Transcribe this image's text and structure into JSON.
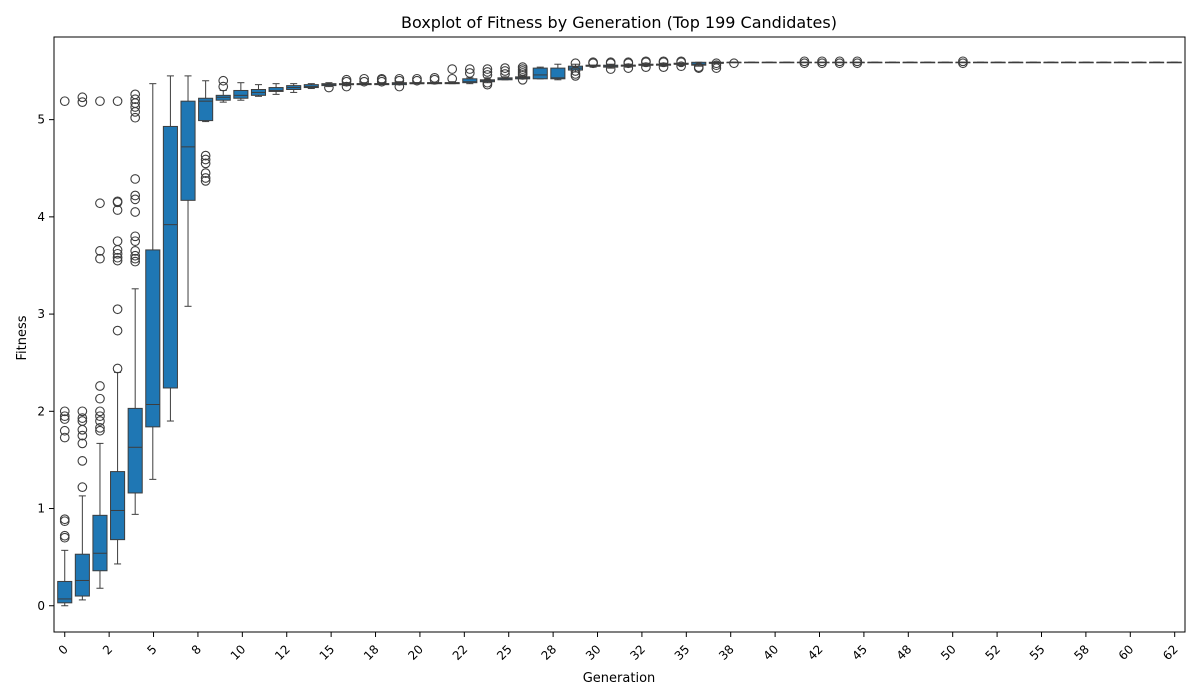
{
  "chart_data": {
    "type": "box",
    "title": "Boxplot of Fitness by Generation (Top 199 Candidates)",
    "xlabel": "Generation",
    "ylabel": "Fitness",
    "ylim": [
      -0.27,
      5.85
    ],
    "yticks": [
      0,
      1,
      2,
      3,
      4,
      5
    ],
    "grid": false,
    "box_color": "#1f77b4",
    "edge_color": "#3d3d3d",
    "x_tick_labels": [
      "0",
      "2",
      "5",
      "8",
      "10",
      "12",
      "15",
      "18",
      "20",
      "22",
      "25",
      "28",
      "30",
      "32",
      "35",
      "38",
      "40",
      "42",
      "45",
      "48",
      "50",
      "52",
      "55",
      "58",
      "60",
      "62"
    ],
    "boxes": [
      {
        "q1": 0.03,
        "median": 0.07,
        "q3": 0.25,
        "whisker_low": 0.0,
        "whisker_high": 0.57,
        "outliers": [
          0.7,
          0.72,
          0.87,
          0.89,
          1.73,
          1.8,
          1.92,
          1.95,
          2.0,
          5.19
        ]
      },
      {
        "q1": 0.1,
        "median": 0.26,
        "q3": 0.53,
        "whisker_low": 0.06,
        "whisker_high": 1.13,
        "outliers": [
          1.22,
          1.49,
          1.67,
          1.75,
          1.81,
          1.9,
          1.93,
          2.0,
          5.18,
          5.23
        ]
      },
      {
        "q1": 0.36,
        "median": 0.54,
        "q3": 0.93,
        "whisker_low": 0.18,
        "whisker_high": 1.67,
        "outliers": [
          1.8,
          1.83,
          1.9,
          1.95,
          2.0,
          2.13,
          2.26,
          3.57,
          3.65,
          4.14,
          5.19
        ]
      },
      {
        "q1": 0.68,
        "median": 0.98,
        "q3": 1.38,
        "whisker_low": 0.43,
        "whisker_high": 2.4,
        "outliers": [
          2.44,
          2.83,
          3.05,
          3.55,
          3.58,
          3.62,
          3.66,
          3.75,
          4.07,
          4.15,
          4.16,
          5.19
        ]
      },
      {
        "q1": 1.16,
        "median": 1.63,
        "q3": 2.03,
        "whisker_low": 0.94,
        "whisker_high": 3.26,
        "outliers": [
          3.54,
          3.57,
          3.6,
          3.65,
          3.75,
          3.8,
          4.05,
          4.18,
          4.22,
          4.39,
          5.02,
          5.08,
          5.13,
          5.17,
          5.21,
          5.26
        ]
      },
      {
        "q1": 1.84,
        "median": 2.07,
        "q3": 3.66,
        "whisker_low": 1.3,
        "whisker_high": 5.37,
        "outliers": []
      },
      {
        "q1": 2.24,
        "median": 3.92,
        "q3": 4.93,
        "whisker_low": 1.9,
        "whisker_high": 5.45,
        "outliers": []
      },
      {
        "q1": 4.17,
        "median": 4.72,
        "q3": 5.19,
        "whisker_low": 3.08,
        "whisker_high": 5.45,
        "outliers": []
      },
      {
        "q1": 4.99,
        "median": 5.19,
        "q3": 5.22,
        "whisker_low": 4.98,
        "whisker_high": 5.4,
        "outliers": [
          4.37,
          4.4,
          4.45,
          4.55,
          4.59,
          4.63
        ]
      },
      {
        "q1": 5.2,
        "median": 5.23,
        "q3": 5.25,
        "whisker_low": 5.18,
        "whisker_high": 5.3,
        "outliers": [
          5.34,
          5.4
        ]
      },
      {
        "q1": 5.22,
        "median": 5.25,
        "q3": 5.3,
        "whisker_low": 5.2,
        "whisker_high": 5.38,
        "outliers": []
      },
      {
        "q1": 5.25,
        "median": 5.28,
        "q3": 5.31,
        "whisker_low": 5.24,
        "whisker_high": 5.36,
        "outliers": []
      },
      {
        "q1": 5.29,
        "median": 5.3,
        "q3": 5.33,
        "whisker_low": 5.26,
        "whisker_high": 5.37,
        "outliers": []
      },
      {
        "q1": 5.31,
        "median": 5.33,
        "q3": 5.35,
        "whisker_low": 5.28,
        "whisker_high": 5.37,
        "outliers": []
      },
      {
        "q1": 5.33,
        "median": 5.34,
        "q3": 5.36,
        "whisker_low": 5.32,
        "whisker_high": 5.37,
        "outliers": []
      },
      {
        "q1": 5.35,
        "median": 5.36,
        "q3": 5.37,
        "whisker_low": 5.34,
        "whisker_high": 5.38,
        "outliers": [
          5.33
        ]
      },
      {
        "q1": 5.36,
        "median": 5.36,
        "q3": 5.37,
        "whisker_low": 5.35,
        "whisker_high": 5.38,
        "outliers": [
          5.34,
          5.39,
          5.41
        ]
      },
      {
        "q1": 5.36,
        "median": 5.37,
        "q3": 5.37,
        "whisker_low": 5.36,
        "whisker_high": 5.38,
        "outliers": [
          5.39,
          5.42
        ]
      },
      {
        "q1": 5.36,
        "median": 5.37,
        "q3": 5.37,
        "whisker_low": 5.36,
        "whisker_high": 5.38,
        "outliers": [
          5.39,
          5.41,
          5.42
        ]
      },
      {
        "q1": 5.36,
        "median": 5.37,
        "q3": 5.38,
        "whisker_low": 5.36,
        "whisker_high": 5.39,
        "outliers": [
          5.34,
          5.4,
          5.42
        ]
      },
      {
        "q1": 5.37,
        "median": 5.37,
        "q3": 5.38,
        "whisker_low": 5.37,
        "whisker_high": 5.38,
        "outliers": [
          5.4,
          5.42
        ]
      },
      {
        "q1": 5.37,
        "median": 5.38,
        "q3": 5.38,
        "whisker_low": 5.37,
        "whisker_high": 5.38,
        "outliers": [
          5.41,
          5.43
        ]
      },
      {
        "q1": 5.37,
        "median": 5.38,
        "q3": 5.38,
        "whisker_low": 5.37,
        "whisker_high": 5.39,
        "outliers": [
          5.42,
          5.52
        ]
      },
      {
        "q1": 5.38,
        "median": 5.39,
        "q3": 5.42,
        "whisker_low": 5.37,
        "whisker_high": 5.43,
        "outliers": [
          5.48,
          5.52
        ]
      },
      {
        "q1": 5.39,
        "median": 5.4,
        "q3": 5.41,
        "whisker_low": 5.38,
        "whisker_high": 5.43,
        "outliers": [
          5.36,
          5.38,
          5.46,
          5.49,
          5.52
        ]
      },
      {
        "q1": 5.41,
        "median": 5.42,
        "q3": 5.43,
        "whisker_low": 5.41,
        "whisker_high": 5.44,
        "outliers": [
          5.47,
          5.5,
          5.53
        ]
      },
      {
        "q1": 5.42,
        "median": 5.43,
        "q3": 5.44,
        "whisker_low": 5.42,
        "whisker_high": 5.45,
        "outliers": [
          5.41,
          5.46,
          5.48,
          5.5,
          5.52,
          5.54
        ]
      },
      {
        "q1": 5.42,
        "median": 5.46,
        "q3": 5.53,
        "whisker_low": 5.42,
        "whisker_high": 5.54,
        "outliers": []
      },
      {
        "q1": 5.42,
        "median": 5.43,
        "q3": 5.53,
        "whisker_low": 5.41,
        "whisker_high": 5.57,
        "outliers": []
      },
      {
        "q1": 5.51,
        "median": 5.53,
        "q3": 5.55,
        "whisker_low": 5.49,
        "whisker_high": 5.57,
        "outliers": [
          5.45,
          5.47,
          5.5,
          5.58
        ]
      },
      {
        "q1": 5.55,
        "median": 5.55,
        "q3": 5.56,
        "whisker_low": 5.54,
        "whisker_high": 5.56,
        "outliers": [
          5.58,
          5.59
        ]
      },
      {
        "q1": 5.54,
        "median": 5.55,
        "q3": 5.56,
        "whisker_low": 5.53,
        "whisker_high": 5.57,
        "outliers": [
          5.52,
          5.58,
          5.59
        ]
      },
      {
        "q1": 5.55,
        "median": 5.56,
        "q3": 5.56,
        "whisker_low": 5.54,
        "whisker_high": 5.57,
        "outliers": [
          5.53,
          5.58,
          5.59
        ]
      },
      {
        "q1": 5.56,
        "median": 5.56,
        "q3": 5.57,
        "whisker_low": 5.55,
        "whisker_high": 5.58,
        "outliers": [
          5.54,
          5.59,
          5.6
        ]
      },
      {
        "q1": 5.56,
        "median": 5.57,
        "q3": 5.57,
        "whisker_low": 5.55,
        "whisker_high": 5.58,
        "outliers": [
          5.54,
          5.59,
          5.6
        ]
      },
      {
        "q1": 5.57,
        "median": 5.57,
        "q3": 5.58,
        "whisker_low": 5.56,
        "whisker_high": 5.58,
        "outliers": [
          5.55,
          5.59,
          5.6
        ]
      },
      {
        "q1": 5.56,
        "median": 5.57,
        "q3": 5.59,
        "whisker_low": 5.55,
        "whisker_high": 5.59,
        "outliers": [
          5.53,
          5.54
        ]
      },
      {
        "q1": 5.58,
        "median": 5.58,
        "q3": 5.59,
        "whisker_low": 5.58,
        "whisker_high": 5.59,
        "outliers": [
          5.53,
          5.56,
          5.58
        ]
      },
      {
        "q1": 5.59,
        "median": 5.59,
        "q3": 5.59,
        "whisker_low": 5.59,
        "whisker_high": 5.59,
        "outliers": [
          5.58
        ]
      },
      {
        "q1": 5.59,
        "median": 5.59,
        "q3": 5.59,
        "whisker_low": 5.59,
        "whisker_high": 5.59,
        "outliers": []
      },
      {
        "q1": 5.59,
        "median": 5.59,
        "q3": 5.59,
        "whisker_low": 5.59,
        "whisker_high": 5.59,
        "outliers": []
      },
      {
        "q1": 5.59,
        "median": 5.59,
        "q3": 5.59,
        "whisker_low": 5.59,
        "whisker_high": 5.59,
        "outliers": []
      },
      {
        "q1": 5.59,
        "median": 5.59,
        "q3": 5.59,
        "whisker_low": 5.59,
        "whisker_high": 5.59,
        "outliers": [
          5.58,
          5.6
        ]
      },
      {
        "q1": 5.59,
        "median": 5.59,
        "q3": 5.59,
        "whisker_low": 5.59,
        "whisker_high": 5.59,
        "outliers": [
          5.58,
          5.6
        ]
      },
      {
        "q1": 5.59,
        "median": 5.59,
        "q3": 5.59,
        "whisker_low": 5.59,
        "whisker_high": 5.59,
        "outliers": [
          5.58,
          5.6
        ]
      },
      {
        "q1": 5.59,
        "median": 5.59,
        "q3": 5.59,
        "whisker_low": 5.59,
        "whisker_high": 5.59,
        "outliers": [
          5.58,
          5.6
        ]
      },
      {
        "q1": 5.59,
        "median": 5.59,
        "q3": 5.59,
        "whisker_low": 5.59,
        "whisker_high": 5.59,
        "outliers": []
      },
      {
        "q1": 5.59,
        "median": 5.59,
        "q3": 5.59,
        "whisker_low": 5.59,
        "whisker_high": 5.59,
        "outliers": []
      },
      {
        "q1": 5.59,
        "median": 5.59,
        "q3": 5.59,
        "whisker_low": 5.59,
        "whisker_high": 5.59,
        "outliers": []
      },
      {
        "q1": 5.59,
        "median": 5.59,
        "q3": 5.59,
        "whisker_low": 5.59,
        "whisker_high": 5.59,
        "outliers": []
      },
      {
        "q1": 5.59,
        "median": 5.59,
        "q3": 5.59,
        "whisker_low": 5.59,
        "whisker_high": 5.59,
        "outliers": []
      },
      {
        "q1": 5.59,
        "median": 5.59,
        "q3": 5.59,
        "whisker_low": 5.59,
        "whisker_high": 5.59,
        "outliers": [
          5.58,
          5.6
        ]
      },
      {
        "q1": 5.59,
        "median": 5.59,
        "q3": 5.59,
        "whisker_low": 5.59,
        "whisker_high": 5.59,
        "outliers": []
      },
      {
        "q1": 5.59,
        "median": 5.59,
        "q3": 5.59,
        "whisker_low": 5.59,
        "whisker_high": 5.59,
        "outliers": []
      },
      {
        "q1": 5.59,
        "median": 5.59,
        "q3": 5.59,
        "whisker_low": 5.59,
        "whisker_high": 5.59,
        "outliers": []
      },
      {
        "q1": 5.59,
        "median": 5.59,
        "q3": 5.59,
        "whisker_low": 5.59,
        "whisker_high": 5.59,
        "outliers": []
      },
      {
        "q1": 5.59,
        "median": 5.59,
        "q3": 5.59,
        "whisker_low": 5.59,
        "whisker_high": 5.59,
        "outliers": []
      },
      {
        "q1": 5.59,
        "median": 5.59,
        "q3": 5.59,
        "whisker_low": 5.59,
        "whisker_high": 5.59,
        "outliers": []
      },
      {
        "q1": 5.59,
        "median": 5.59,
        "q3": 5.59,
        "whisker_low": 5.59,
        "whisker_high": 5.59,
        "outliers": []
      },
      {
        "q1": 5.59,
        "median": 5.59,
        "q3": 5.59,
        "whisker_low": 5.59,
        "whisker_high": 5.59,
        "outliers": []
      },
      {
        "q1": 5.59,
        "median": 5.59,
        "q3": 5.59,
        "whisker_low": 5.59,
        "whisker_high": 5.59,
        "outliers": []
      },
      {
        "q1": 5.59,
        "median": 5.59,
        "q3": 5.59,
        "whisker_low": 5.59,
        "whisker_high": 5.59,
        "outliers": []
      },
      {
        "q1": 5.59,
        "median": 5.59,
        "q3": 5.59,
        "whisker_low": 5.59,
        "whisker_high": 5.59,
        "outliers": []
      },
      {
        "q1": 5.59,
        "median": 5.59,
        "q3": 5.59,
        "whisker_low": 5.59,
        "whisker_high": 5.59,
        "outliers": []
      }
    ]
  }
}
